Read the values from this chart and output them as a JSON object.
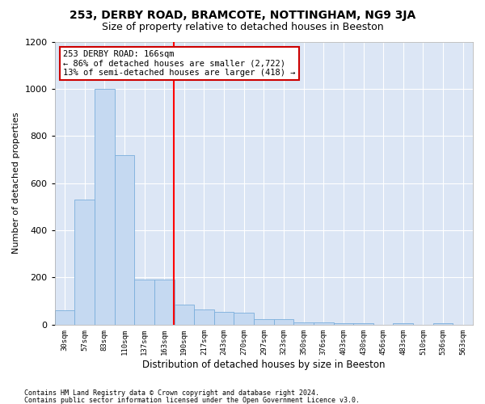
{
  "title1": "253, DERBY ROAD, BRAMCOTE, NOTTINGHAM, NG9 3JA",
  "title2": "Size of property relative to detached houses in Beeston",
  "xlabel": "Distribution of detached houses by size in Beeston",
  "ylabel": "Number of detached properties",
  "categories": [
    "30sqm",
    "57sqm",
    "83sqm",
    "110sqm",
    "137sqm",
    "163sqm",
    "190sqm",
    "217sqm",
    "243sqm",
    "270sqm",
    "297sqm",
    "323sqm",
    "350sqm",
    "376sqm",
    "403sqm",
    "430sqm",
    "456sqm",
    "483sqm",
    "510sqm",
    "536sqm",
    "563sqm"
  ],
  "values": [
    62,
    530,
    1000,
    720,
    190,
    190,
    85,
    65,
    55,
    50,
    25,
    25,
    10,
    8,
    5,
    5,
    0,
    5,
    0,
    5,
    0
  ],
  "bar_color": "#c5d9f1",
  "bar_edge_color": "#7aaedc",
  "red_line_x": 5.48,
  "annotation_text": "253 DERBY ROAD: 166sqm\n← 86% of detached houses are smaller (2,722)\n13% of semi-detached houses are larger (418) →",
  "annotation_box_color": "#ffffff",
  "annotation_box_edge": "#cc0000",
  "ylim": [
    0,
    1200
  ],
  "yticks": [
    0,
    200,
    400,
    600,
    800,
    1000,
    1200
  ],
  "footer1": "Contains HM Land Registry data © Crown copyright and database right 2024.",
  "footer2": "Contains public sector information licensed under the Open Government Licence v3.0.",
  "fig_bg_color": "#ffffff",
  "plot_bg_color": "#dce6f5",
  "title1_fontsize": 10,
  "title2_fontsize": 9,
  "grid_color": "#ffffff"
}
